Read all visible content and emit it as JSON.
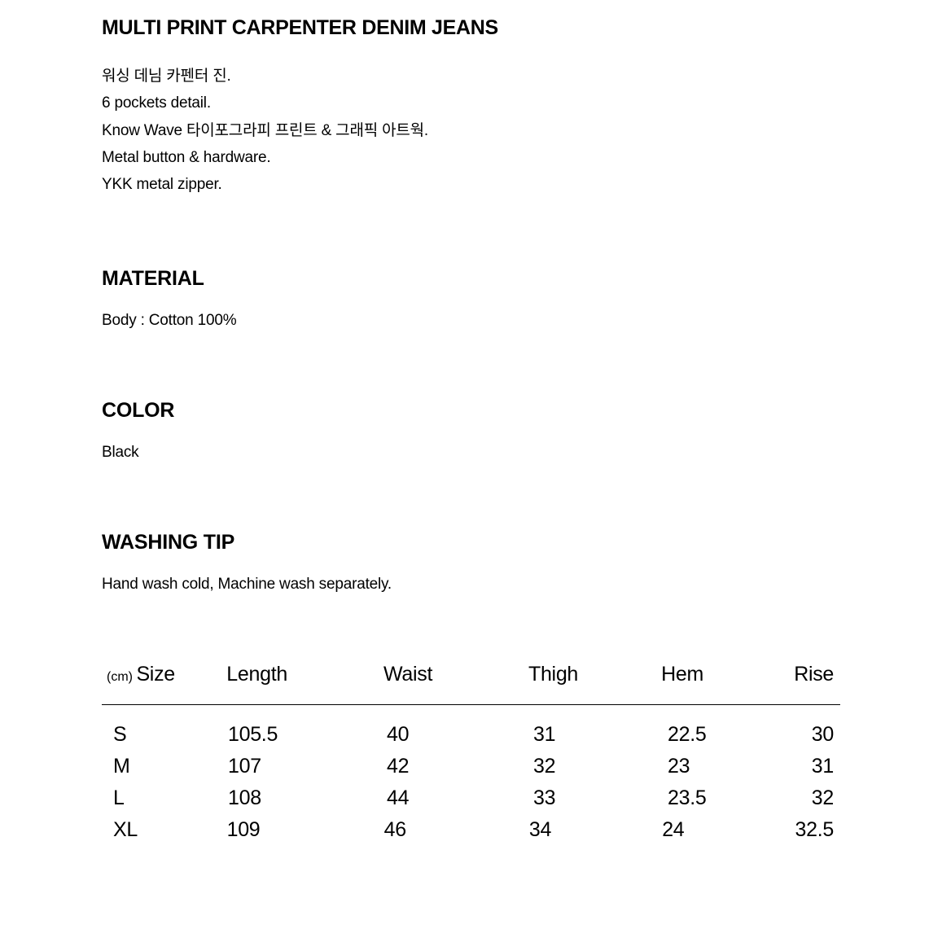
{
  "product": {
    "title": "MULTI PRINT CARPENTER DENIM JEANS",
    "descriptions": [
      "워싱 데님 카펜터 진.",
      "6 pockets detail.",
      "Know Wave 타이포그라피 프린트 & 그래픽 아트웍.",
      "Metal button & hardware.",
      "YKK metal zipper."
    ]
  },
  "material": {
    "heading": "MATERIAL",
    "value": "Body : Cotton 100%"
  },
  "color": {
    "heading": "COLOR",
    "value": "Black"
  },
  "washing": {
    "heading": "WASHING TIP",
    "value": "Hand wash cold, Machine wash separately."
  },
  "sizeTable": {
    "unit": "(cm)",
    "columns": [
      "Size",
      "Length",
      "Waist",
      "Thigh",
      "Hem",
      "Rise"
    ],
    "rows": [
      {
        "size": "S",
        "length": "105.5",
        "waist": "40",
        "thigh": "31",
        "hem": "22.5",
        "rise": "30"
      },
      {
        "size": "M",
        "length": "107",
        "waist": "42",
        "thigh": "32",
        "hem": "23",
        "rise": "31"
      },
      {
        "size": "L",
        "length": "108",
        "waist": "44",
        "thigh": "33",
        "hem": "23.5",
        "rise": "32"
      },
      {
        "size": "XL",
        "length": "109",
        "waist": "46",
        "thigh": "34",
        "hem": "24",
        "rise": "32.5"
      }
    ]
  },
  "styling": {
    "background_color": "#ffffff",
    "text_color": "#000000",
    "title_fontsize": 25,
    "heading_fontsize": 25,
    "body_fontsize": 19,
    "table_fontsize": 25,
    "unit_fontsize": 16,
    "border_color": "#000000"
  }
}
